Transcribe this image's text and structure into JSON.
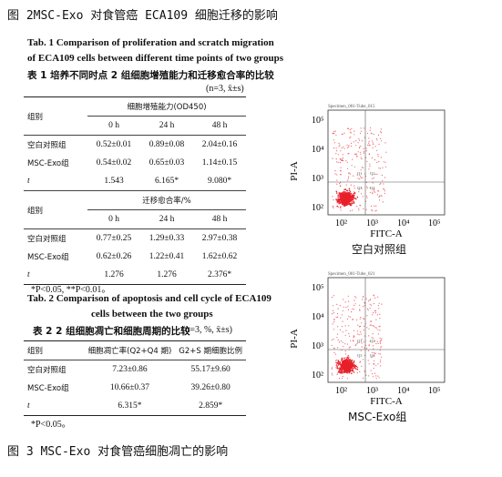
{
  "fig2_caption": "图 2MSC-Exo 对食管癌 ECA109 细胞迁移的影响",
  "fig3_caption": "图 3 MSC-Exo 对食管癌细胞凋亡的影响",
  "table1": {
    "title_en_line1": "Tab. 1   Comparison of proliferation and scratch migration",
    "title_en_line2": "of ECA109 cells between different time points of two groups",
    "title_cn": "表 1   培养不同时点 2 组细胞增殖能力和迁移愈合率的比较",
    "unit": "(n=3, x̄±s)",
    "group_label": "组别",
    "block1_header": "细胞增殖能力(OD450)",
    "block2_header": "迁移愈合率/%",
    "time_cols": [
      "0 h",
      "24 h",
      "48 h"
    ],
    "block1_rows": [
      {
        "name": "空白对照组",
        "values": [
          "0.52±0.01",
          "0.89±0.08",
          "2.04±0.16"
        ]
      },
      {
        "name": "MSC-Exo组",
        "values": [
          "0.54±0.02",
          "0.65±0.03",
          "1.14±0.15"
        ]
      },
      {
        "name": "t",
        "values": [
          "1.543",
          "6.165*",
          "9.080*"
        ]
      }
    ],
    "block2_rows": [
      {
        "name": "空白对照组",
        "values": [
          "0.77±0.25",
          "1.29±0.33",
          "2.97±0.38"
        ]
      },
      {
        "name": "MSC-Exo组",
        "values": [
          "0.62±0.26",
          "1.22±0.41",
          "1.62±0.62"
        ]
      },
      {
        "name": "t",
        "values": [
          "1.276",
          "1.276",
          "2.376*"
        ]
      }
    ],
    "note": "*P<0.05, **P<0.01。"
  },
  "table2": {
    "title_en_line1": "Tab. 2   Comparison of apoptosis and cell cycle of ECA109",
    "title_en_line2": "cells between the two groups",
    "title_cn": "表 2   2 组细胞凋亡和细胞周期的比较",
    "unit": "(n=3, %, x̄±s)",
    "headers": [
      "组别",
      "细胞凋亡率(Q2+Q4 期)",
      "G2+S 期细胞比例"
    ],
    "rows": [
      {
        "name": "空白对照组",
        "values": [
          "7.23±0.86",
          "55.17±9.60"
        ]
      },
      {
        "name": "MSC-Exo组",
        "values": [
          "10.66±0.37",
          "39.26±0.80"
        ]
      },
      {
        "name": "t",
        "values": [
          "6.315*",
          "2.859*"
        ]
      }
    ],
    "note": "*P<0.05。"
  },
  "plots": [
    {
      "specimen": "Specimen_001-Tube_015",
      "xlabel": "FITC-A",
      "ylabel": "PI-A",
      "group": "空白对照组",
      "quadrants": [
        "Q1",
        "Q2",
        "Q3",
        "Q4"
      ],
      "x_ticks": [
        "10²",
        "10³",
        "10⁴",
        "10⁵"
      ],
      "y_ticks": [
        "10⁵",
        "10⁴",
        "10³",
        "10²"
      ],
      "dot_color": "#e8202a"
    },
    {
      "specimen": "Specimen_001-Tube_021",
      "xlabel": "FITC-A",
      "ylabel": "PI-A",
      "group": "MSC-Exo组",
      "quadrants": [
        "Q1",
        "Q2",
        "Q3",
        "Q4"
      ],
      "x_ticks": [
        "10²",
        "10³",
        "10⁴",
        "10⁵"
      ],
      "y_ticks": [
        "10⁵",
        "10⁴",
        "10³",
        "10²"
      ],
      "dot_color": "#e8202a"
    }
  ]
}
